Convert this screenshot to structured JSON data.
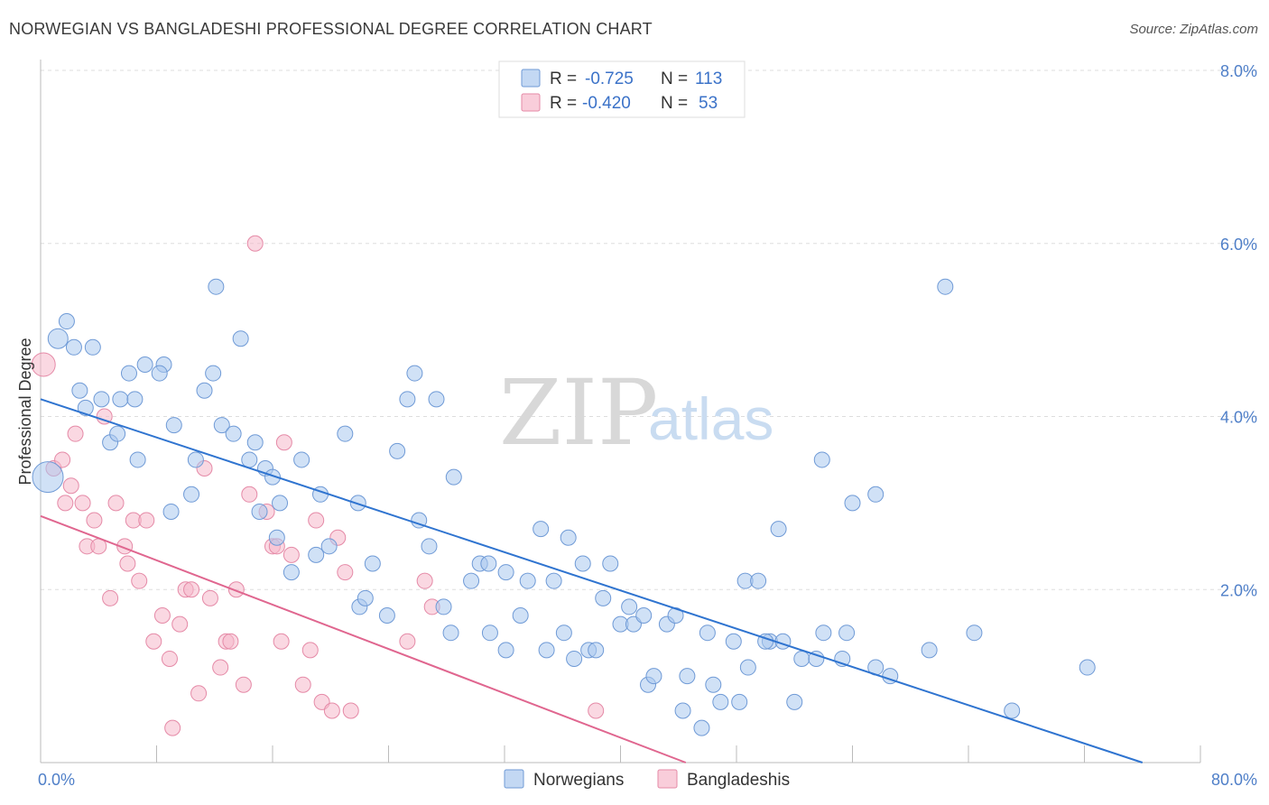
{
  "title": "NORWEGIAN VS BANGLADESHI PROFESSIONAL DEGREE CORRELATION CHART",
  "source": "Source: ZipAtlas.com",
  "watermark": {
    "zip": "ZIP",
    "atlas": "atlas"
  },
  "colors": {
    "norwegians": "#a9c8ee",
    "norwegians_stroke": "#6f9ad6",
    "norwegians_line": "#2f74d0",
    "bangladeshis": "#f6b8cb",
    "bangladeshis_stroke": "#e58aa7",
    "bangladeshis_line": "#e0668f",
    "grid": "#dddddd",
    "tick_label": "#4f7fc8"
  },
  "legend": {
    "rows": [
      {
        "r_label": "R =",
        "r_value": "-0.725",
        "n_label": "N =",
        "n_value": "113"
      },
      {
        "r_label": "R =",
        "r_value": "-0.420",
        "n_label": "N =",
        "n_value": "53"
      }
    ]
  },
  "bottom_legend": {
    "items": [
      "Norwegians",
      "Bangladeshis"
    ]
  },
  "chart_data": {
    "type": "scatter",
    "title": "NORWEGIAN VS BANGLADESHI PROFESSIONAL DEGREE CORRELATION CHART",
    "xlabel": "",
    "ylabel": "Professional Degree",
    "xlim": [
      0,
      80
    ],
    "ylim": [
      0,
      8
    ],
    "x_tick_labels": [
      "0.0%",
      "80.0%"
    ],
    "y_tick_labels": [
      "2.0%",
      "4.0%",
      "6.0%",
      "8.0%"
    ],
    "y_ticks": [
      2,
      4,
      6,
      8
    ],
    "grid": true,
    "legend_position": "top-center",
    "series": [
      {
        "name": "Norwegians",
        "R": -0.725,
        "N": 113,
        "trend": {
          "x": [
            0,
            76
          ],
          "y": [
            4.2,
            0.0
          ]
        },
        "points": [
          [
            1.2,
            4.9
          ],
          [
            1.8,
            5.1
          ],
          [
            2.3,
            4.8
          ],
          [
            3.6,
            4.8
          ],
          [
            2.7,
            4.3
          ],
          [
            3.1,
            4.1
          ],
          [
            4.2,
            4.2
          ],
          [
            5.5,
            4.2
          ],
          [
            6.5,
            4.2
          ],
          [
            6.1,
            4.5
          ],
          [
            7.2,
            4.6
          ],
          [
            8.5,
            4.6
          ],
          [
            8.2,
            4.5
          ],
          [
            9.2,
            3.9
          ],
          [
            10.7,
            3.5
          ],
          [
            4.8,
            3.7
          ],
          [
            5.3,
            3.8
          ],
          [
            11.3,
            4.3
          ],
          [
            11.9,
            4.5
          ],
          [
            12.5,
            3.9
          ],
          [
            12.1,
            5.5
          ],
          [
            13.3,
            3.8
          ],
          [
            14.4,
            3.5
          ],
          [
            13.8,
            4.9
          ],
          [
            14.8,
            3.7
          ],
          [
            15.5,
            3.4
          ],
          [
            16.0,
            3.3
          ],
          [
            16.5,
            3.0
          ],
          [
            15.1,
            2.9
          ],
          [
            16.3,
            2.6
          ],
          [
            9.0,
            2.9
          ],
          [
            10.4,
            3.1
          ],
          [
            6.7,
            3.5
          ],
          [
            17.3,
            2.2
          ],
          [
            18.0,
            3.5
          ],
          [
            19.3,
            3.1
          ],
          [
            19.9,
            2.5
          ],
          [
            19.0,
            2.4
          ],
          [
            21.0,
            3.8
          ],
          [
            21.9,
            3.0
          ],
          [
            22.0,
            1.8
          ],
          [
            22.4,
            1.9
          ],
          [
            22.9,
            2.3
          ],
          [
            23.9,
            1.7
          ],
          [
            24.6,
            3.6
          ],
          [
            25.3,
            4.2
          ],
          [
            25.8,
            4.5
          ],
          [
            26.1,
            2.8
          ],
          [
            26.8,
            2.5
          ],
          [
            27.3,
            4.2
          ],
          [
            27.8,
            1.8
          ],
          [
            28.3,
            1.5
          ],
          [
            28.5,
            3.3
          ],
          [
            29.7,
            2.1
          ],
          [
            30.3,
            2.3
          ],
          [
            30.9,
            2.3
          ],
          [
            31.0,
            1.5
          ],
          [
            32.1,
            2.2
          ],
          [
            32.1,
            1.3
          ],
          [
            33.1,
            1.7
          ],
          [
            33.6,
            2.1
          ],
          [
            34.5,
            2.7
          ],
          [
            34.9,
            1.3
          ],
          [
            35.4,
            2.1
          ],
          [
            36.1,
            1.5
          ],
          [
            36.4,
            2.6
          ],
          [
            36.8,
            1.2
          ],
          [
            37.4,
            2.3
          ],
          [
            37.8,
            1.3
          ],
          [
            38.3,
            1.3
          ],
          [
            38.8,
            1.9
          ],
          [
            39.3,
            2.3
          ],
          [
            40.0,
            1.6
          ],
          [
            40.6,
            1.8
          ],
          [
            40.9,
            1.6
          ],
          [
            41.6,
            1.7
          ],
          [
            41.9,
            0.9
          ],
          [
            42.3,
            1.0
          ],
          [
            43.2,
            1.6
          ],
          [
            43.8,
            1.7
          ],
          [
            44.3,
            0.6
          ],
          [
            44.6,
            1.0
          ],
          [
            45.6,
            0.4
          ],
          [
            46.0,
            1.5
          ],
          [
            46.4,
            0.9
          ],
          [
            46.9,
            0.7
          ],
          [
            47.8,
            1.4
          ],
          [
            48.2,
            0.7
          ],
          [
            48.6,
            2.1
          ],
          [
            48.8,
            1.1
          ],
          [
            49.5,
            2.1
          ],
          [
            50.3,
            1.4
          ],
          [
            50.9,
            2.7
          ],
          [
            50.0,
            1.4
          ],
          [
            51.2,
            1.4
          ],
          [
            52.0,
            0.7
          ],
          [
            52.5,
            1.2
          ],
          [
            53.5,
            1.2
          ],
          [
            53.9,
            3.5
          ],
          [
            54.0,
            1.5
          ],
          [
            55.3,
            1.2
          ],
          [
            55.6,
            1.5
          ],
          [
            56.0,
            3.0
          ],
          [
            57.6,
            3.1
          ],
          [
            57.6,
            1.1
          ],
          [
            58.6,
            1.0
          ],
          [
            61.3,
            1.3
          ],
          [
            62.4,
            5.5
          ],
          [
            64.4,
            1.5
          ],
          [
            67.0,
            0.6
          ],
          [
            72.2,
            1.1
          ],
          [
            0.5,
            3.3
          ]
        ]
      },
      {
        "name": "Bangladeshis",
        "R": -0.42,
        "N": 53,
        "trend": {
          "x": [
            0,
            44.5
          ],
          "y": [
            2.85,
            0.0
          ]
        },
        "points": [
          [
            0.2,
            4.6
          ],
          [
            0.9,
            3.4
          ],
          [
            1.5,
            3.5
          ],
          [
            1.7,
            3.0
          ],
          [
            2.1,
            3.2
          ],
          [
            2.4,
            3.8
          ],
          [
            2.9,
            3.0
          ],
          [
            3.2,
            2.5
          ],
          [
            3.7,
            2.8
          ],
          [
            4.0,
            2.5
          ],
          [
            4.4,
            4.0
          ],
          [
            4.8,
            1.9
          ],
          [
            5.2,
            3.0
          ],
          [
            5.8,
            2.5
          ],
          [
            6.0,
            2.3
          ],
          [
            6.4,
            2.8
          ],
          [
            6.8,
            2.1
          ],
          [
            7.3,
            2.8
          ],
          [
            7.8,
            1.4
          ],
          [
            8.4,
            1.7
          ],
          [
            8.9,
            1.2
          ],
          [
            9.1,
            0.4
          ],
          [
            9.6,
            1.6
          ],
          [
            10.0,
            2.0
          ],
          [
            10.4,
            2.0
          ],
          [
            10.9,
            0.8
          ],
          [
            11.3,
            3.4
          ],
          [
            11.7,
            1.9
          ],
          [
            12.4,
            1.1
          ],
          [
            12.8,
            1.4
          ],
          [
            13.1,
            1.4
          ],
          [
            13.5,
            2.0
          ],
          [
            14.0,
            0.9
          ],
          [
            14.4,
            3.1
          ],
          [
            14.8,
            6.0
          ],
          [
            15.6,
            2.9
          ],
          [
            16.0,
            2.5
          ],
          [
            16.3,
            2.5
          ],
          [
            16.6,
            1.4
          ],
          [
            16.8,
            3.7
          ],
          [
            17.3,
            2.4
          ],
          [
            18.1,
            0.9
          ],
          [
            18.6,
            1.3
          ],
          [
            19.0,
            2.8
          ],
          [
            19.4,
            0.7
          ],
          [
            20.1,
            0.6
          ],
          [
            20.5,
            2.6
          ],
          [
            21.0,
            2.2
          ],
          [
            21.4,
            0.6
          ],
          [
            25.3,
            1.4
          ],
          [
            26.5,
            2.1
          ],
          [
            27.0,
            1.8
          ],
          [
            38.3,
            0.6
          ]
        ]
      }
    ]
  }
}
